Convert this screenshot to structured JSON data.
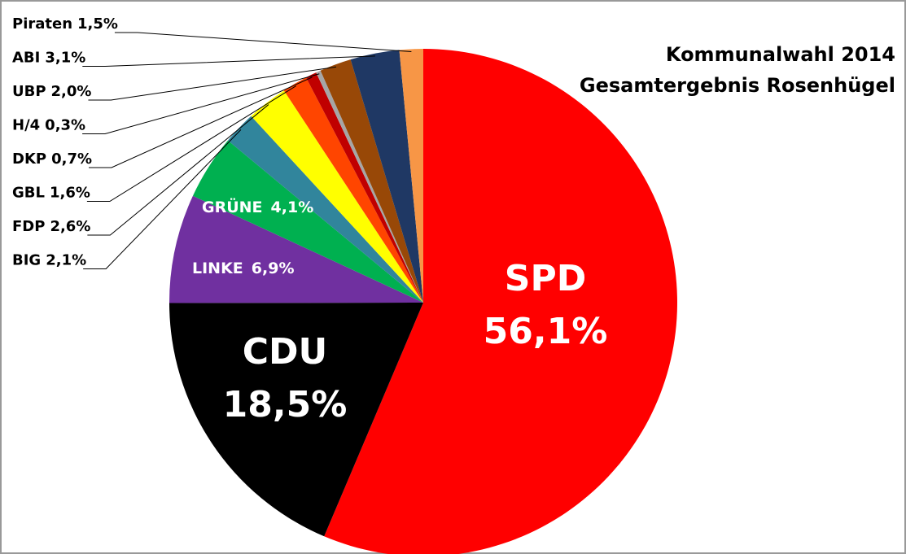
{
  "chart_data": {
    "type": "pie",
    "title": "Kommunalwahl  2014",
    "subtitle": "Gesamtergebnis Rosenhügel",
    "categories": [
      "SPD",
      "CDU",
      "LINKE",
      "GRÜNE",
      "BIG",
      "FDP",
      "GBL",
      "DKP",
      "H/4",
      "UBP",
      "ABI",
      "Piraten"
    ],
    "values": [
      56.1,
      18.5,
      6.9,
      4.1,
      2.1,
      2.6,
      1.6,
      0.7,
      0.3,
      2.0,
      3.1,
      1.5
    ],
    "value_labels": [
      "56,1%",
      "18,5%",
      "6,9%",
      "4,1%",
      "2,1%",
      "2,6%",
      "1,6%",
      "0,7%",
      "0,3%",
      "2,0%",
      "3,1%",
      "1,5%"
    ],
    "colors": [
      "#ff0000",
      "#000000",
      "#7030a0",
      "#00b050",
      "#31859c",
      "#ffff00",
      "#ff4500",
      "#c00000",
      "#a6a6a6",
      "#984807",
      "#1f3864",
      "#f79646"
    ]
  }
}
